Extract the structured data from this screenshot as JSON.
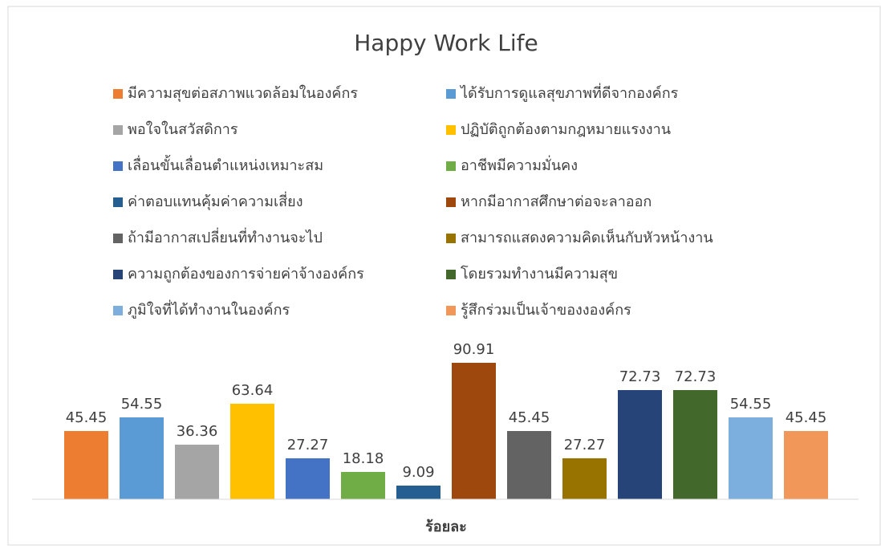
{
  "chart_data": {
    "type": "bar",
    "title": "Happy Work Life",
    "categories": [
      "ร้อยละ"
    ],
    "legend": "top",
    "series": [
      {
        "name": "มีความสุขต่อสภาพแวดล้อมในองค์กร",
        "color": "#ED7D31",
        "values": [
          45.45
        ]
      },
      {
        "name": "ได้รับการดูแลสุขภาพที่ดีจากองค์กร",
        "color": "#5B9BD5",
        "values": [
          54.55
        ]
      },
      {
        "name": "พอใจในสวัสดิการ",
        "color": "#A5A5A5",
        "values": [
          36.36
        ]
      },
      {
        "name": "ปฏิบัติถูกต้องตามกฎหมายแรงงาน",
        "color": "#FFC000",
        "values": [
          63.64
        ]
      },
      {
        "name": "เลื่อนขั้นเลื่อนตำแหน่งเหมาะสม",
        "color": "#4472C4",
        "values": [
          27.27
        ]
      },
      {
        "name": "อาชีพมีความมั่นคง",
        "color": "#70AD47",
        "values": [
          18.18
        ]
      },
      {
        "name": "ค่าตอบแทนคุ้มค่าความเสี่ยง",
        "color": "#255E91",
        "values": [
          9.09
        ]
      },
      {
        "name": "หากมีอากาสศึกษาต่อจะลาออก",
        "color": "#9E480E",
        "values": [
          90.91
        ]
      },
      {
        "name": "ถ้ามีอากาสเปลี่ยนที่ทำงานจะไป",
        "color": "#636363",
        "values": [
          45.45
        ]
      },
      {
        "name": "สามารถแสดงความคิดเห็นกับหัวหน้างาน",
        "color": "#997300",
        "values": [
          27.27
        ]
      },
      {
        "name": "ความถูกต้องของการจ่ายค่าจ้างองค์กร",
        "color": "#264478",
        "values": [
          72.73
        ]
      },
      {
        "name": "โดยรวมทำงานมีความสุข",
        "color": "#43682B",
        "values": [
          72.73
        ]
      },
      {
        "name": "ภูมิใจที่ได้ทำงานในองค์กร",
        "color": "#7CAFDD",
        "values": [
          54.55
        ]
      },
      {
        "name": "รู้สึกร่วมเป็นเจ้าของงองค์กร",
        "color": "#F1975A",
        "values": [
          45.45
        ]
      }
    ]
  }
}
